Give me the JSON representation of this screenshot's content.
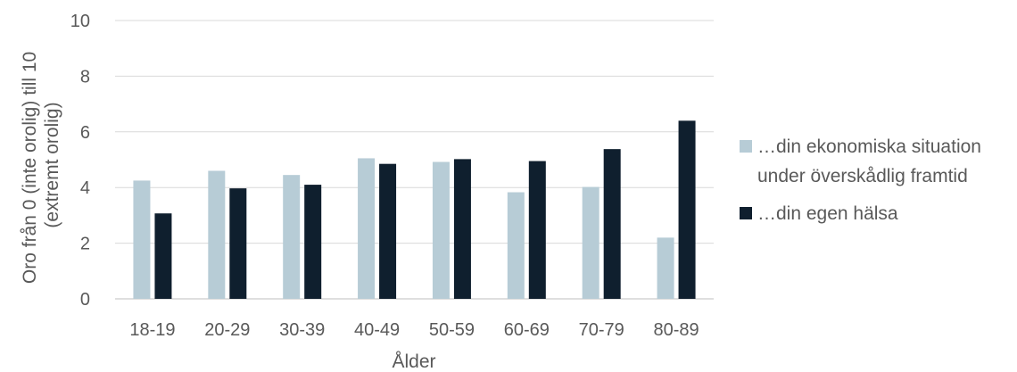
{
  "chart_data": {
    "type": "bar",
    "categories": [
      "18-19",
      "20-29",
      "30-39",
      "40-49",
      "50-59",
      "60-69",
      "70-79",
      "80-89"
    ],
    "series": [
      {
        "name": "…din ekonomiska situation under överskådlig framtid",
        "color": "#b7ccd6",
        "values": [
          4.25,
          4.6,
          4.45,
          5.05,
          4.92,
          3.83,
          4.02,
          2.2
        ]
      },
      {
        "name": "…din egen hälsa",
        "color": "#0f1f2e",
        "values": [
          3.07,
          3.97,
          4.1,
          4.85,
          5.02,
          4.95,
          5.38,
          6.4
        ]
      }
    ],
    "ylim": [
      0,
      10
    ],
    "yticks": [
      0,
      2,
      4,
      6,
      8,
      10
    ],
    "ylabel_lines": [
      "Oro från 0 (inte orolig) till 10",
      "(extremt orolig)"
    ],
    "xlabel": "Ålder",
    "grid": true,
    "legend_position": "right"
  }
}
